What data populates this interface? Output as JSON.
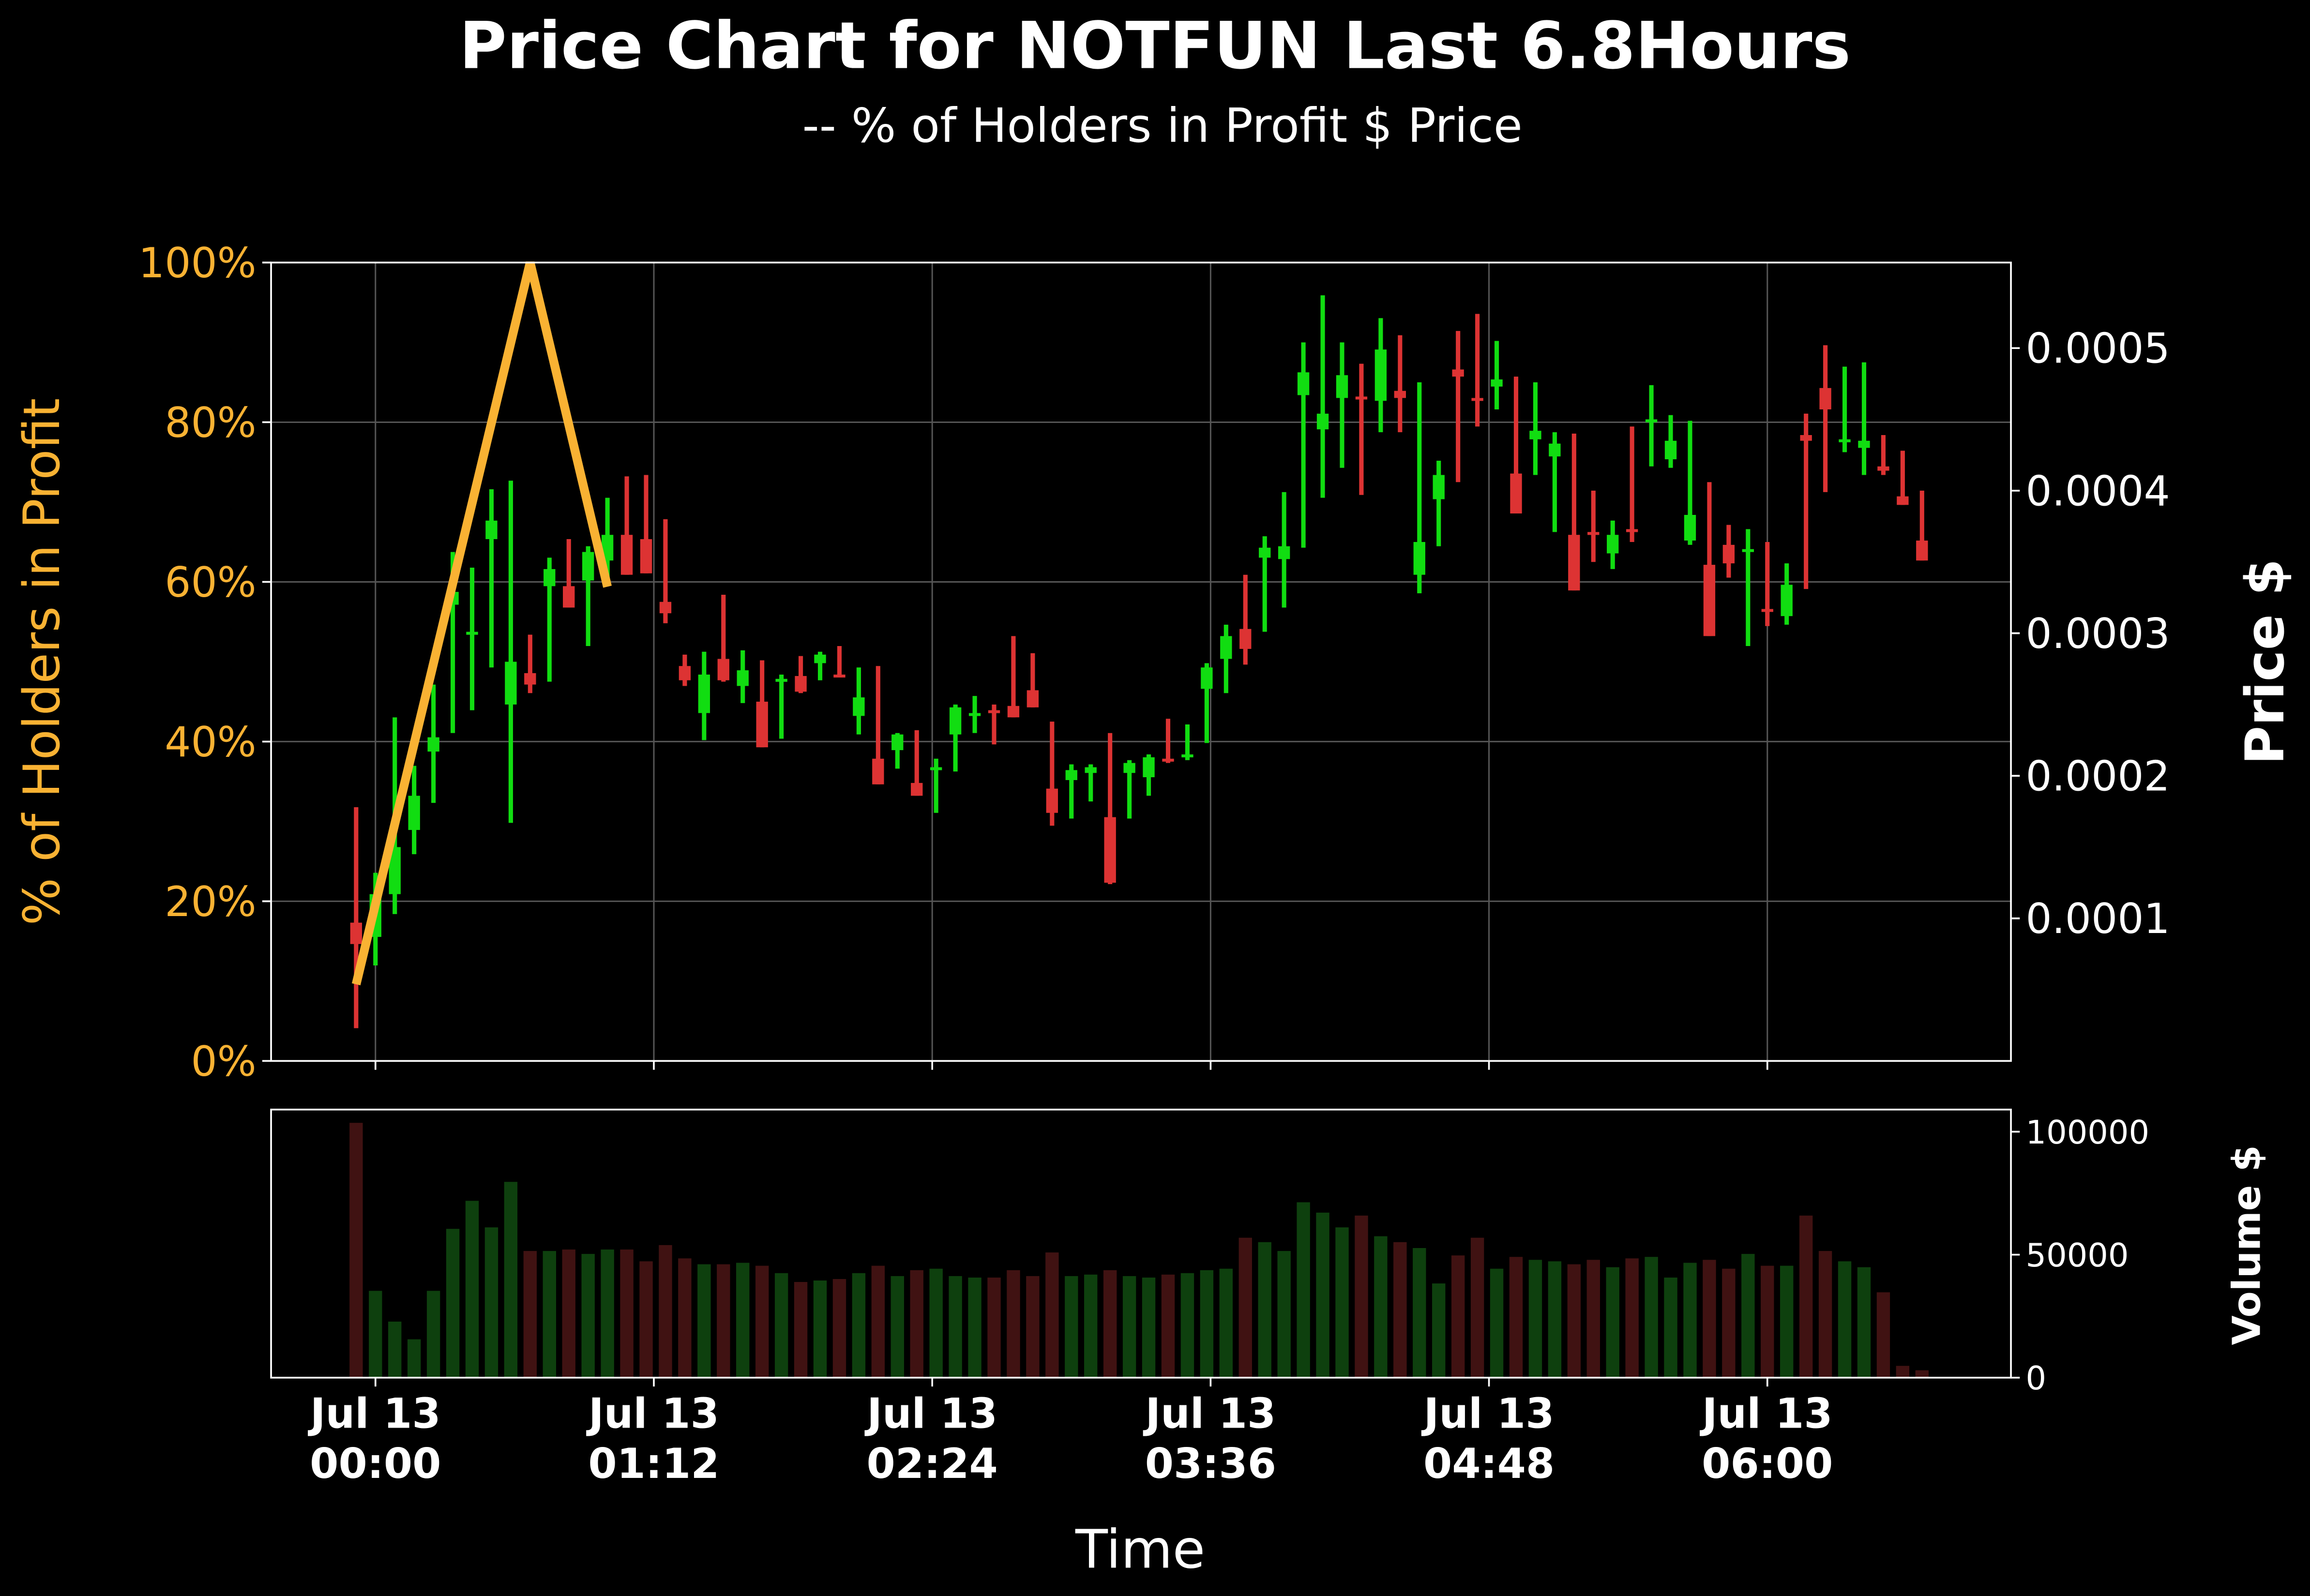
{
  "chart_data": [
    {
      "type": "candlestick",
      "title": "Price Chart for NOTFUN Last 6.8Hours",
      "subtitle": "-- % of Holders in Profit $ Price",
      "ylabel": "% of Holders in Profit",
      "y2label": "Price $",
      "ylim": [
        0,
        100
      ],
      "yticks": [
        {
          "value": 0,
          "label": "0%"
        },
        {
          "value": 20,
          "label": "20%"
        },
        {
          "value": 40,
          "label": "40%"
        },
        {
          "value": 60,
          "label": "60%"
        },
        {
          "value": 80,
          "label": "80%"
        },
        {
          "value": 100,
          "label": "100%"
        }
      ],
      "y2lim": [
        0,
        0.00056
      ],
      "y2ticks": [
        0.0001,
        0.0002,
        0.0003,
        0.0004,
        0.0005
      ],
      "grid": true,
      "up_color": "#11dd11",
      "down_color": "#dd3333",
      "x": [
        "23:55",
        "00:00",
        "00:05",
        "00:10",
        "00:15",
        "00:20",
        "00:25",
        "00:30",
        "00:35",
        "00:40",
        "00:45",
        "00:50",
        "00:55",
        "01:00",
        "01:05",
        "01:10",
        "01:15",
        "01:20",
        "01:25",
        "01:30",
        "01:35",
        "01:40",
        "01:45",
        "01:50",
        "01:55",
        "02:00",
        "02:05",
        "02:10",
        "02:15",
        "02:20",
        "02:25",
        "02:30",
        "02:35",
        "02:40",
        "02:45",
        "02:50",
        "02:55",
        "03:00",
        "03:05",
        "03:10",
        "03:15",
        "03:20",
        "03:25",
        "03:30",
        "03:35",
        "03:40",
        "03:45",
        "03:50",
        "03:55",
        "04:00",
        "04:05",
        "04:10",
        "04:15",
        "04:20",
        "04:25",
        "04:30",
        "04:35",
        "04:40",
        "04:45",
        "04:50",
        "04:55",
        "05:00",
        "05:05",
        "05:10",
        "05:15",
        "05:20",
        "05:25",
        "05:30",
        "05:35",
        "05:40",
        "05:45",
        "05:50",
        "05:55",
        "06:00",
        "06:05",
        "06:10",
        "06:15",
        "06:20",
        "06:25",
        "06:30",
        "06:35",
        "06:40"
      ],
      "open": [
        9.7e-05,
        8.7e-05,
        0.000117,
        0.000162,
        0.000217,
        0.00032,
        0.000299,
        0.000366,
        0.00025,
        0.000272,
        0.000333,
        0.000333,
        0.000337,
        0.000351,
        0.000369,
        0.000366,
        0.000322,
        0.000277,
        0.000244,
        0.000282,
        0.000263,
        0.000252,
        0.000266,
        0.00027,
        0.000279,
        0.000271,
        0.000242,
        0.000212,
        0.000218,
        0.000195,
        0.000204,
        0.000229,
        0.000242,
        0.000246,
        0.000249,
        0.00026,
        0.000191,
        0.000197,
        0.000202,
        0.000171,
        0.000202,
        0.000199,
        0.000212,
        0.000213,
        0.000261,
        0.000282,
        0.000303,
        0.000353,
        0.000352,
        0.000467,
        0.000443,
        0.000465,
        0.000466,
        0.000463,
        0.00047,
        0.000341,
        0.000394,
        0.000485,
        0.000465,
        0.000473,
        0.000412,
        0.000436,
        0.000424,
        0.000369,
        0.000371,
        0.000356,
        0.000373,
        0.000448,
        0.000422,
        0.000365,
        0.000348,
        0.000362,
        0.000357,
        0.000317,
        0.000312,
        0.000439,
        0.000472,
        0.000434,
        0.00043,
        0.000417,
        0.000396,
        0.000365
      ],
      "high": [
        0.000178,
        0.000132,
        0.000241,
        0.000207,
        0.000264,
        0.000357,
        0.000346,
        0.000401,
        0.000407,
        0.000299,
        0.000353,
        0.000366,
        0.000361,
        0.000395,
        0.00041,
        0.000411,
        0.00038,
        0.000285,
        0.000287,
        0.000327,
        0.000288,
        0.000281,
        0.000271,
        0.000284,
        0.000287,
        0.000291,
        0.000276,
        0.000277,
        0.00023,
        0.000232,
        0.000212,
        0.00025,
        0.000256,
        0.00025,
        0.000298,
        0.000286,
        0.000238,
        0.000208,
        0.000208,
        0.00023,
        0.000211,
        0.000215,
        0.00024,
        0.000236,
        0.000279,
        0.000306,
        0.000341,
        0.000368,
        0.000399,
        0.000504,
        0.000537,
        0.000504,
        0.000489,
        0.000521,
        0.000509,
        0.000476,
        0.000421,
        0.000512,
        0.000524,
        0.000505,
        0.00048,
        0.000476,
        0.000441,
        0.00044,
        0.0004,
        0.000379,
        0.000445,
        0.000474,
        0.000453,
        0.000449,
        0.000406,
        0.000376,
        0.000373,
        0.000364,
        0.000349,
        0.000454,
        0.000502,
        0.000487,
        0.00049,
        0.000439,
        0.000428,
        0.0004
      ],
      "low": [
        2.3e-05,
        6.7e-05,
        0.000103,
        0.000145,
        0.000181,
        0.00023,
        0.000246,
        0.000276,
        0.000167,
        0.000258,
        0.000266,
        0.000318,
        0.000291,
        0.000333,
        0.000341,
        0.000342,
        0.000307,
        0.000263,
        0.000225,
        0.000266,
        0.000251,
        0.00022,
        0.000226,
        0.000258,
        0.000267,
        0.000269,
        0.000229,
        0.000194,
        0.000205,
        0.000186,
        0.000174,
        0.000203,
        0.00023,
        0.000222,
        0.000241,
        0.000248,
        0.000165,
        0.00017,
        0.000182,
        0.000124,
        0.00017,
        0.000186,
        0.000209,
        0.000211,
        0.000223,
        0.000258,
        0.000278,
        0.000301,
        0.000318,
        0.00036,
        0.000395,
        0.000416,
        0.000397,
        0.000441,
        0.000441,
        0.000328,
        0.000361,
        0.000406,
        0.000445,
        0.000457,
        0.000384,
        0.000411,
        0.000371,
        0.00033,
        0.00035,
        0.000345,
        0.000364,
        0.000417,
        0.000416,
        0.000362,
        0.000298,
        0.000339,
        0.000291,
        0.000305,
        0.000306,
        0.000331,
        0.000399,
        0.000427,
        0.000411,
        0.000411,
        0.00039,
        0.000351
      ],
      "close": [
        8.2e-05,
        0.000117,
        0.00015,
        0.000186,
        0.000227,
        0.000329,
        0.000301,
        0.000379,
        0.00028,
        0.000264,
        0.000345,
        0.000318,
        0.000357,
        0.000369,
        0.000341,
        0.000342,
        0.000314,
        0.000267,
        0.000271,
        0.000267,
        0.000274,
        0.00022,
        0.000268,
        0.000259,
        0.000285,
        0.000269,
        0.000255,
        0.000194,
        0.000229,
        0.000186,
        0.000206,
        0.000248,
        0.000244,
        0.000244,
        0.000241,
        0.000248,
        0.000174,
        0.000204,
        0.000206,
        0.000125,
        0.000209,
        0.000213,
        0.00021,
        0.000215,
        0.000276,
        0.000298,
        0.000289,
        0.00036,
        0.000361,
        0.000483,
        0.000454,
        0.000481,
        0.000464,
        0.000499,
        0.000465,
        0.000364,
        0.000411,
        0.00048,
        0.000463,
        0.000478,
        0.000384,
        0.000442,
        0.000433,
        0.00033,
        0.000369,
        0.000369,
        0.000371,
        0.00045,
        0.000435,
        0.000383,
        0.000298,
        0.000349,
        0.000359,
        0.000315,
        0.000334,
        0.000435,
        0.000457,
        0.000436,
        0.000435,
        0.000414,
        0.00039,
        0.000351
      ],
      "series": [
        {
          "color": "#f9b233",
          "x": [
            "23:55",
            "00:40",
            "01:00"
          ],
          "values": [
            9.6,
            100,
            59.4
          ]
        }
      ]
    },
    {
      "type": "bar",
      "ylabel": "Volume $",
      "xlabel": "Time",
      "ylim": [
        0,
        109000
      ],
      "yticks": [
        0,
        50000,
        100000
      ],
      "xlim": [
        "23:33",
        "07:03"
      ],
      "xticks": [
        {
          "value": "00:00",
          "label": "Jul 13\n00:00"
        },
        {
          "value": "01:12",
          "label": "Jul 13\n01:12"
        },
        {
          "value": "02:24",
          "label": "Jul 13\n02:24"
        },
        {
          "value": "03:36",
          "label": "Jul 13\n03:36"
        },
        {
          "value": "04:48",
          "label": "Jul 13\n04:48"
        },
        {
          "value": "06:00",
          "label": "Jul 13\n06:00"
        }
      ],
      "up_color": "#0e400e",
      "down_color": "#401212",
      "values": [
        103600,
        35300,
        22800,
        15600,
        35300,
        60500,
        71900,
        61100,
        79600,
        51500,
        51500,
        52100,
        50300,
        52100,
        52100,
        47300,
        53900,
        48500,
        46100,
        46100,
        46700,
        45500,
        42500,
        38900,
        39500,
        40100,
        42500,
        45500,
        41300,
        43700,
        44300,
        41300,
        40700,
        40700,
        43700,
        41300,
        50900,
        41300,
        41900,
        43700,
        41300,
        40700,
        41900,
        42500,
        43700,
        44300,
        56900,
        55100,
        51500,
        71300,
        67100,
        61100,
        65900,
        57500,
        55100,
        52700,
        38300,
        49700,
        56900,
        44300,
        49100,
        47900,
        47300,
        46100,
        47900,
        44900,
        48500,
        49100,
        40700,
        46700,
        47900,
        44300,
        50300,
        45500,
        45500,
        65900,
        51500,
        47300,
        44900,
        34700,
        4800,
        3000
      ]
    }
  ]
}
